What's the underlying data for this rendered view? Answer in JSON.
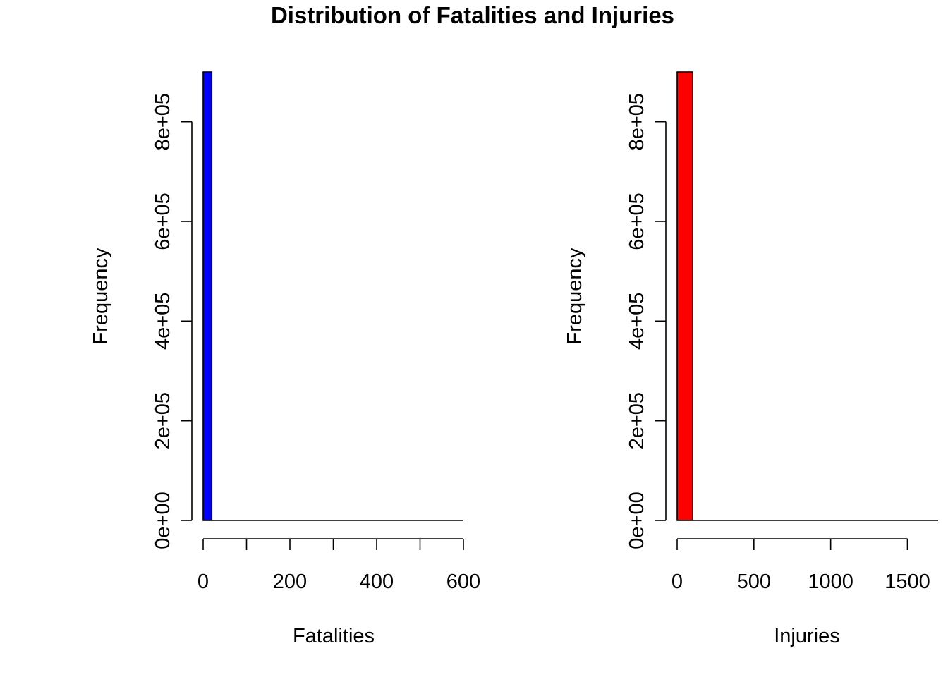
{
  "title": "Distribution of Fatalities and Injuries",
  "chart_data": [
    {
      "type": "bar",
      "subtype": "histogram",
      "xlabel": "Fatalities",
      "ylabel": "Frequency",
      "bar_color": "#0000ff",
      "xlim": [
        0,
        600
      ],
      "ylim": [
        0,
        900000
      ],
      "x_ticks": [
        0,
        100,
        200,
        300,
        400,
        500,
        600
      ],
      "x_tick_labels": [
        "0",
        "",
        "200",
        "",
        "400",
        "",
        "600"
      ],
      "y_ticks": [
        0,
        200000,
        400000,
        600000,
        800000
      ],
      "y_tick_labels": [
        "0e+00",
        "2e+05",
        "4e+05",
        "6e+05",
        "8e+05"
      ],
      "bins": [
        {
          "start": 0,
          "end": 20,
          "count": 900000
        }
      ],
      "baseline_end": 600,
      "grid": false
    },
    {
      "type": "bar",
      "subtype": "histogram",
      "xlabel": "Injuries",
      "ylabel": "Frequency",
      "bar_color": "#ff0000",
      "xlim": [
        0,
        1700
      ],
      "ylim": [
        0,
        900000
      ],
      "x_ticks": [
        0,
        500,
        1000,
        1500
      ],
      "x_tick_labels": [
        "0",
        "500",
        "1000",
        "1500"
      ],
      "y_ticks": [
        0,
        200000,
        400000,
        600000,
        800000
      ],
      "y_tick_labels": [
        "0e+00",
        "2e+05",
        "4e+05",
        "6e+05",
        "8e+05"
      ],
      "bins": [
        {
          "start": 0,
          "end": 100,
          "count": 900000
        }
      ],
      "baseline_end": 1700,
      "grid": false
    }
  ]
}
